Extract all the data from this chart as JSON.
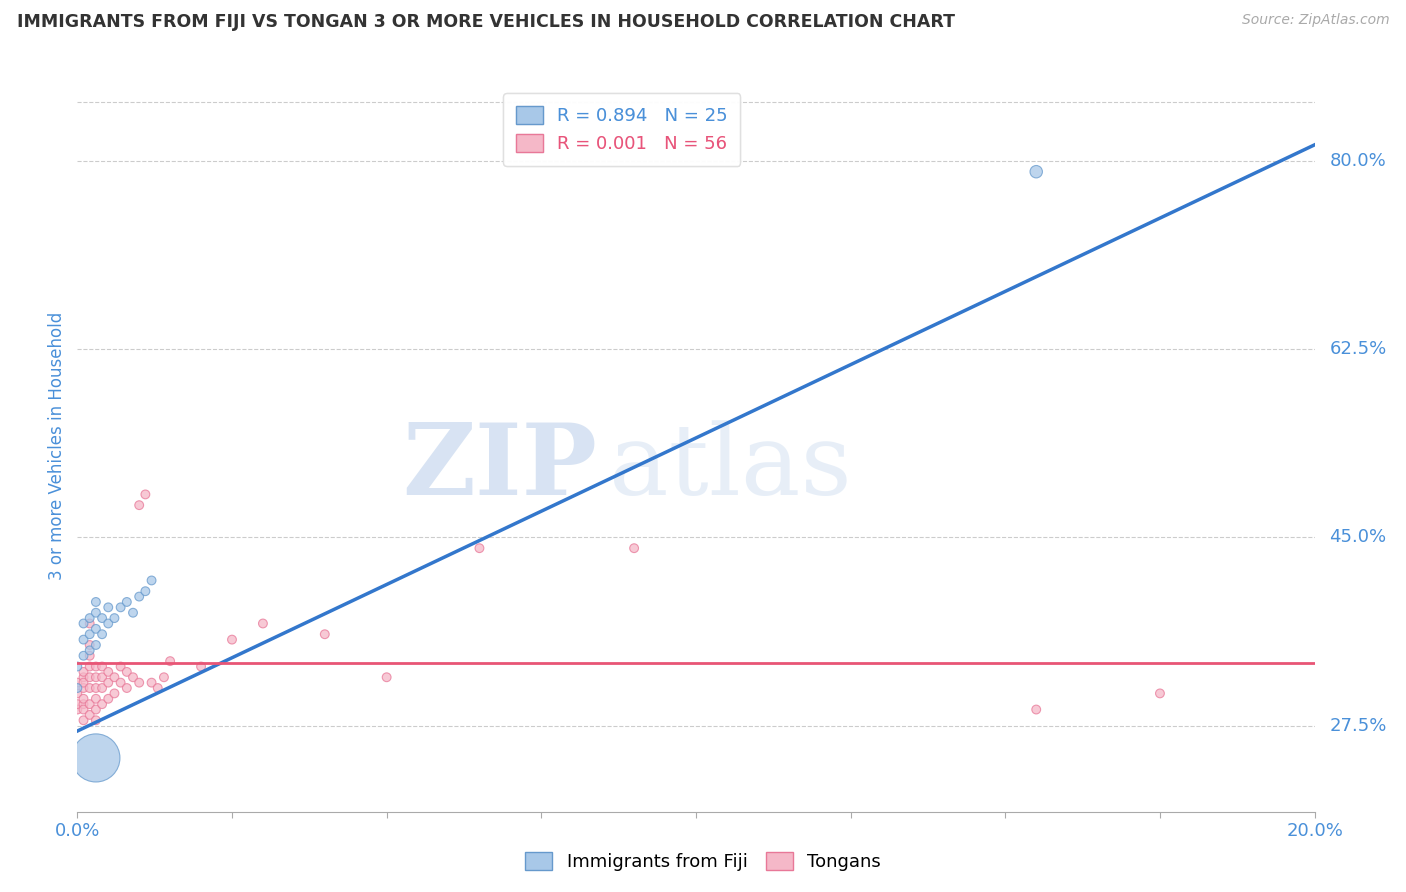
{
  "title": "IMMIGRANTS FROM FIJI VS TONGAN 3 OR MORE VEHICLES IN HOUSEHOLD CORRELATION CHART",
  "source": "Source: ZipAtlas.com",
  "ylabel": "3 or more Vehicles in Household",
  "xlim": [
    0.0,
    0.2
  ],
  "ylim": [
    0.195,
    0.875
  ],
  "xticks": [
    0.0,
    0.025,
    0.05,
    0.075,
    0.1,
    0.125,
    0.15,
    0.175,
    0.2
  ],
  "ytick_positions": [
    0.275,
    0.45,
    0.625,
    0.8
  ],
  "ytick_labels": [
    "27.5%",
    "45.0%",
    "62.5%",
    "80.0%"
  ],
  "fiji_color": "#a8c8e8",
  "fiji_edge_color": "#6699cc",
  "tongan_color": "#f5b8c8",
  "tongan_edge_color": "#e87898",
  "fiji_line_color": "#3377cc",
  "tongan_line_color": "#e85575",
  "fiji_R": 0.894,
  "fiji_N": 25,
  "tongan_R": 0.001,
  "tongan_N": 56,
  "legend_fiji_label": "Immigrants from Fiji",
  "legend_tongan_label": "Tongans",
  "watermark_zip": "ZIP",
  "watermark_atlas": "atlas",
  "fiji_points": [
    [
      0.0,
      0.33
    ],
    [
      0.0,
      0.31
    ],
    [
      0.001,
      0.355
    ],
    [
      0.001,
      0.34
    ],
    [
      0.001,
      0.37
    ],
    [
      0.002,
      0.345
    ],
    [
      0.002,
      0.36
    ],
    [
      0.002,
      0.375
    ],
    [
      0.003,
      0.35
    ],
    [
      0.003,
      0.365
    ],
    [
      0.003,
      0.38
    ],
    [
      0.003,
      0.39
    ],
    [
      0.004,
      0.36
    ],
    [
      0.004,
      0.375
    ],
    [
      0.005,
      0.37
    ],
    [
      0.005,
      0.385
    ],
    [
      0.006,
      0.375
    ],
    [
      0.007,
      0.385
    ],
    [
      0.008,
      0.39
    ],
    [
      0.009,
      0.38
    ],
    [
      0.01,
      0.395
    ],
    [
      0.011,
      0.4
    ],
    [
      0.012,
      0.41
    ],
    [
      0.003,
      0.245
    ],
    [
      0.155,
      0.79
    ]
  ],
  "fiji_bubble_sizes": [
    40,
    40,
    40,
    40,
    40,
    40,
    40,
    40,
    40,
    40,
    40,
    40,
    40,
    40,
    40,
    40,
    40,
    40,
    40,
    40,
    40,
    40,
    40,
    1200,
    80
  ],
  "tongan_points": [
    [
      0.0,
      0.29
    ],
    [
      0.0,
      0.305
    ],
    [
      0.0,
      0.315
    ],
    [
      0.0,
      0.295
    ],
    [
      0.001,
      0.28
    ],
    [
      0.001,
      0.295
    ],
    [
      0.001,
      0.31
    ],
    [
      0.001,
      0.32
    ],
    [
      0.001,
      0.325
    ],
    [
      0.001,
      0.315
    ],
    [
      0.001,
      0.3
    ],
    [
      0.001,
      0.29
    ],
    [
      0.002,
      0.285
    ],
    [
      0.002,
      0.295
    ],
    [
      0.002,
      0.31
    ],
    [
      0.002,
      0.32
    ],
    [
      0.002,
      0.33
    ],
    [
      0.002,
      0.34
    ],
    [
      0.002,
      0.35
    ],
    [
      0.002,
      0.37
    ],
    [
      0.003,
      0.29
    ],
    [
      0.003,
      0.3
    ],
    [
      0.003,
      0.31
    ],
    [
      0.003,
      0.32
    ],
    [
      0.003,
      0.33
    ],
    [
      0.003,
      0.28
    ],
    [
      0.004,
      0.295
    ],
    [
      0.004,
      0.31
    ],
    [
      0.004,
      0.32
    ],
    [
      0.004,
      0.33
    ],
    [
      0.005,
      0.3
    ],
    [
      0.005,
      0.315
    ],
    [
      0.005,
      0.325
    ],
    [
      0.006,
      0.305
    ],
    [
      0.006,
      0.32
    ],
    [
      0.007,
      0.315
    ],
    [
      0.007,
      0.33
    ],
    [
      0.008,
      0.31
    ],
    [
      0.008,
      0.325
    ],
    [
      0.009,
      0.32
    ],
    [
      0.01,
      0.315
    ],
    [
      0.01,
      0.48
    ],
    [
      0.011,
      0.49
    ],
    [
      0.012,
      0.315
    ],
    [
      0.013,
      0.31
    ],
    [
      0.014,
      0.32
    ],
    [
      0.015,
      0.335
    ],
    [
      0.02,
      0.33
    ],
    [
      0.025,
      0.355
    ],
    [
      0.03,
      0.37
    ],
    [
      0.04,
      0.36
    ],
    [
      0.05,
      0.32
    ],
    [
      0.065,
      0.44
    ],
    [
      0.09,
      0.44
    ],
    [
      0.155,
      0.29
    ],
    [
      0.175,
      0.305
    ]
  ],
  "tongan_bubble_sizes": [
    40,
    40,
    40,
    40,
    40,
    40,
    40,
    40,
    40,
    40,
    40,
    40,
    40,
    40,
    40,
    40,
    40,
    40,
    40,
    40,
    40,
    40,
    40,
    40,
    40,
    40,
    40,
    40,
    40,
    40,
    40,
    40,
    40,
    40,
    40,
    40,
    40,
    40,
    40,
    40,
    40,
    40,
    40,
    40,
    40,
    40,
    40,
    40,
    40,
    40,
    40,
    40,
    40,
    40,
    40,
    40
  ],
  "fiji_line_x": [
    0.0,
    0.2
  ],
  "fiji_line_y": [
    0.27,
    0.815
  ],
  "tongan_line_y": 0.333,
  "background_color": "#ffffff",
  "grid_color": "#cccccc"
}
